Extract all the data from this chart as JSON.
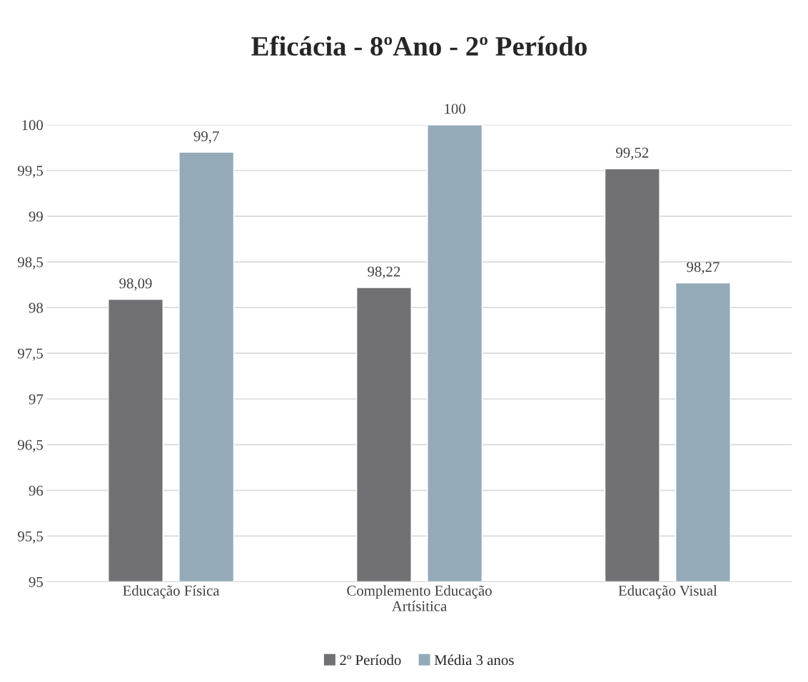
{
  "chart_data": {
    "type": "bar",
    "title": "Eficácia - 8ºAno - 2º Período",
    "categories": [
      "Educação Física",
      "Complemento Educação\nArtísitica",
      "Educação Visual"
    ],
    "series": [
      {
        "name": "2º Período",
        "color": "#717075",
        "values": [
          98.09,
          98.22,
          99.52
        ],
        "value_labels": [
          "98,09",
          "98,22",
          "99,52"
        ]
      },
      {
        "name": "Média 3 anos",
        "color": "#94aab9",
        "values": [
          99.7,
          100,
          98.27
        ],
        "value_labels": [
          "99,7",
          "100",
          "98,27"
        ]
      }
    ],
    "ylim": [
      95,
      100
    ],
    "yticks": [
      95,
      {
        "value": 95.5,
        "label": "95,5"
      },
      96,
      {
        "value": 96.5,
        "label": "96,5"
      },
      97,
      {
        "value": 97.5,
        "label": "97,5"
      },
      98,
      {
        "value": 98.5,
        "label": "98,5"
      },
      99,
      {
        "value": 99.5,
        "label": "99,5"
      },
      100
    ],
    "grid": "y",
    "legend": "bottom"
  }
}
